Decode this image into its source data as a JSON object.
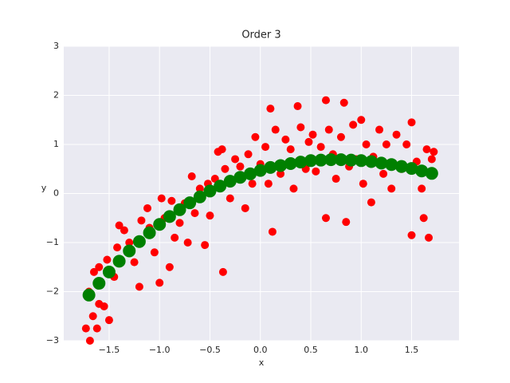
{
  "chart_data": {
    "type": "scatter",
    "title": "Order 3",
    "xlabel": "x",
    "ylabel": "y",
    "xlim": [
      -1.95,
      1.97
    ],
    "ylim": [
      -3,
      3
    ],
    "grid": true,
    "xticks": [
      {
        "value": -1.5,
        "label": "−1.5"
      },
      {
        "value": -1,
        "label": "−1.0"
      },
      {
        "value": -0.5,
        "label": "−0.5"
      },
      {
        "value": 0,
        "label": "0.0"
      },
      0.5,
      {
        "value": 1,
        "label": "1.0"
      },
      1.5
    ],
    "yticks": [
      {
        "value": -3,
        "label": "−3"
      },
      {
        "value": -2,
        "label": "−2"
      },
      {
        "value": -1,
        "label": "−1"
      },
      0,
      1,
      2,
      3
    ],
    "series": [
      {
        "color": "#ff0000",
        "marker_radius": 5,
        "x": [
          -1.73,
          -1.69,
          -1.66,
          -1.62,
          -1.6,
          -1.55,
          -1.5,
          -1.7,
          -1.65,
          -1.6,
          -1.52,
          -1.45,
          -1.4,
          -1.42,
          -1.35,
          -1.3,
          -1.25,
          -1.2,
          -1.18,
          -1.12,
          -1.1,
          -1.05,
          -1.0,
          -0.98,
          -0.95,
          -0.9,
          -0.88,
          -0.85,
          -0.8,
          -0.75,
          -0.72,
          -0.68,
          -0.65,
          -0.6,
          -0.55,
          -0.52,
          -0.5,
          -0.45,
          -0.42,
          -0.38,
          -0.37,
          -0.35,
          -0.3,
          -0.25,
          -0.2,
          -0.15,
          -0.12,
          -0.08,
          -0.05,
          0.0,
          0.05,
          0.08,
          0.1,
          0.12,
          0.15,
          0.2,
          0.25,
          0.3,
          0.33,
          0.37,
          0.4,
          0.45,
          0.48,
          0.52,
          0.55,
          0.6,
          0.65,
          0.65,
          0.68,
          0.72,
          0.75,
          0.8,
          0.83,
          0.85,
          0.88,
          0.92,
          0.95,
          1.0,
          1.02,
          1.05,
          1.1,
          1.12,
          1.18,
          1.22,
          1.25,
          1.3,
          1.35,
          1.4,
          1.45,
          1.5,
          1.5,
          1.55,
          1.6,
          1.62,
          1.65,
          1.67,
          1.7,
          1.72
        ],
        "values": [
          -2.75,
          -3.0,
          -2.5,
          -2.75,
          -2.25,
          -2.3,
          -2.58,
          -2.0,
          -1.6,
          -1.5,
          -1.35,
          -1.7,
          -0.65,
          -1.1,
          -0.75,
          -1.0,
          -1.4,
          -1.9,
          -0.55,
          -0.3,
          -0.7,
          -1.2,
          -1.82,
          -0.1,
          -0.5,
          -1.5,
          -0.15,
          -0.9,
          -0.6,
          -0.2,
          -1.0,
          0.35,
          -0.4,
          0.1,
          -1.05,
          0.2,
          -0.45,
          0.3,
          0.85,
          0.9,
          -1.6,
          0.5,
          -0.1,
          0.7,
          0.55,
          -0.3,
          0.8,
          0.2,
          1.15,
          0.6,
          0.95,
          0.2,
          1.73,
          -0.78,
          1.3,
          0.4,
          1.1,
          0.9,
          0.1,
          1.78,
          1.35,
          0.5,
          1.05,
          1.2,
          0.45,
          0.95,
          1.9,
          -0.5,
          1.3,
          0.8,
          0.3,
          1.15,
          1.85,
          -0.58,
          0.55,
          1.4,
          0.7,
          1.5,
          0.2,
          1.0,
          -0.18,
          0.75,
          1.3,
          0.4,
          1.0,
          0.1,
          1.2,
          0.5,
          1.0,
          1.45,
          -0.85,
          0.65,
          0.1,
          -0.5,
          0.9,
          -0.9,
          0.7,
          0.85
        ]
      },
      {
        "color": "#008000",
        "marker_radius": 8,
        "x": [
          -1.7,
          -1.6,
          -1.5,
          -1.4,
          -1.3,
          -1.2,
          -1.1,
          -1.0,
          -0.9,
          -0.8,
          -0.7,
          -0.6,
          -0.5,
          -0.4,
          -0.3,
          -0.2,
          -0.1,
          0,
          0.1,
          0.2,
          0.3,
          0.4,
          0.5,
          0.6,
          0.7,
          0.8,
          0.9,
          1.0,
          1.1,
          1.2,
          1.3,
          1.4,
          1.5,
          1.6,
          1.7
        ],
        "values": [
          -2.07,
          -1.83,
          -1.6,
          -1.38,
          -1.17,
          -0.98,
          -0.8,
          -0.63,
          -0.47,
          -0.33,
          -0.19,
          -0.07,
          0.05,
          0.15,
          0.25,
          0.33,
          0.4,
          0.47,
          0.53,
          0.57,
          0.61,
          0.64,
          0.67,
          0.68,
          0.69,
          0.69,
          0.68,
          0.67,
          0.65,
          0.62,
          0.59,
          0.55,
          0.51,
          0.46,
          0.41
        ]
      }
    ]
  }
}
